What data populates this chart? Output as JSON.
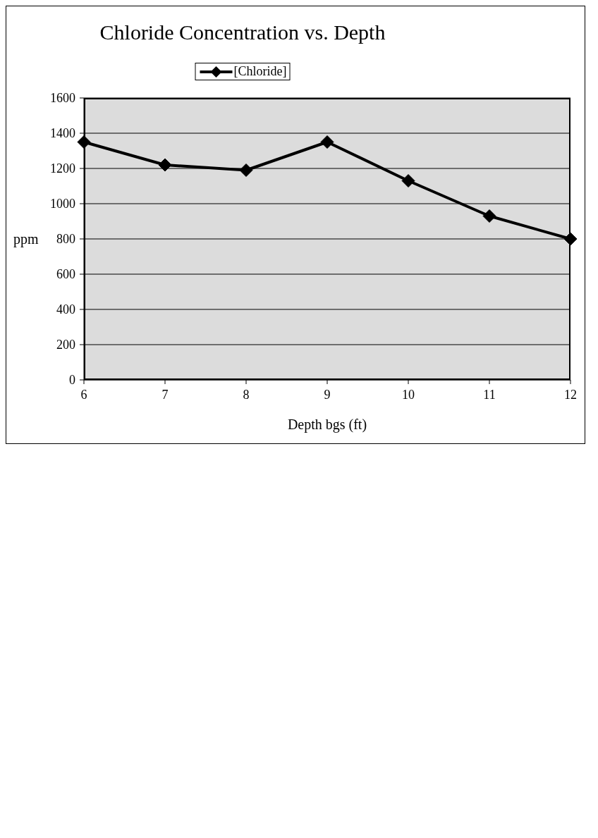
{
  "chart_data": {
    "type": "line",
    "title": "Chloride Concentration vs. Depth",
    "xlabel": "Depth bgs (ft)",
    "ylabel": "ppm",
    "categories": [
      "6",
      "7",
      "8",
      "9",
      "10",
      "11",
      "12"
    ],
    "series": [
      {
        "name": "[Chloride]",
        "color": "#000000",
        "values": [
          1350,
          1220,
          1190,
          1350,
          1130,
          930,
          800
        ]
      }
    ],
    "ylim": [
      0,
      1600
    ],
    "yticks": [
      0,
      200,
      400,
      600,
      800,
      1000,
      1200,
      1400,
      1600
    ],
    "grid": "y",
    "legend": "top",
    "marker": "diamond",
    "line_style": "solid"
  }
}
